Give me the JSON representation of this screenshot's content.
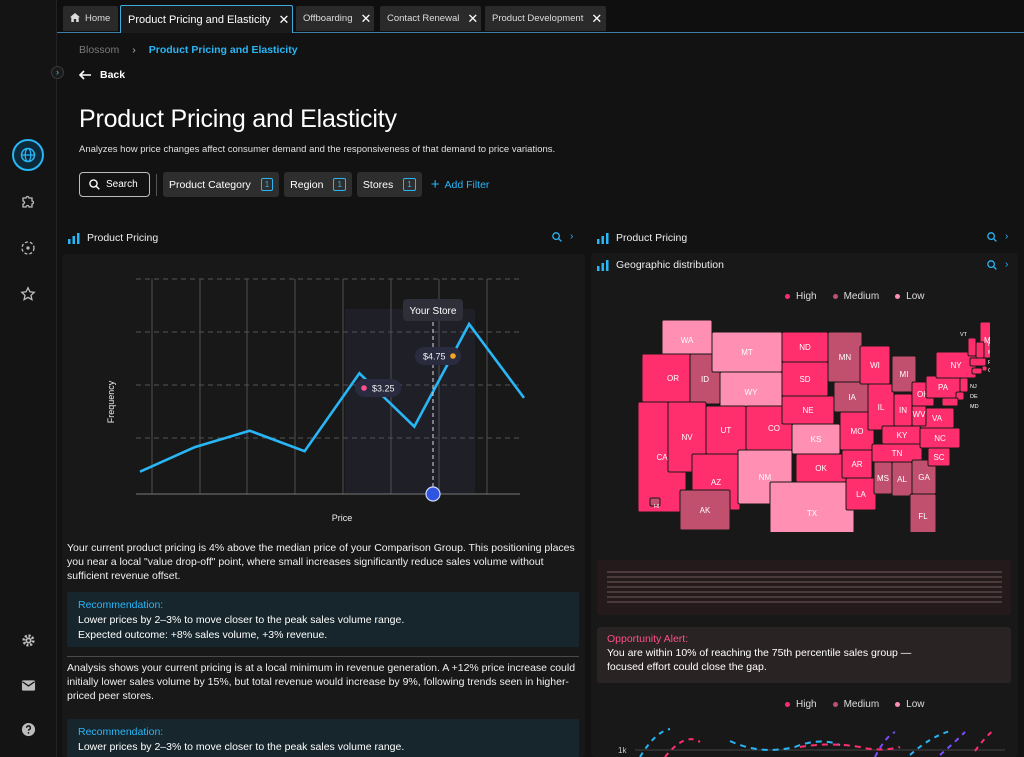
{
  "tabs": [
    {
      "label": "Home"
    },
    {
      "label": "Product Pricing and Elasticity"
    },
    {
      "label": "Offboarding"
    },
    {
      "label": "Contact Renewal"
    },
    {
      "label": "Product Development"
    }
  ],
  "breadcrumb": {
    "root": "Blossom",
    "current": "Product Pricing and Elasticity"
  },
  "header": {
    "back_label": "Back",
    "title": "Product Pricing and Elasticity",
    "subtitle": "Analyzes how price changes affect consumer demand and the responsiveness of that demand to price variations."
  },
  "filters": {
    "search_label": "Search",
    "chips": [
      {
        "label": "Product Category",
        "count": "1"
      },
      {
        "label": "Region",
        "count": "1"
      },
      {
        "label": "Stores",
        "count": "1"
      }
    ],
    "add_label": "Add Filter"
  },
  "left_panel": {
    "title": "Product Pricing",
    "paragraph1": "Your current product pricing is 4% above the median price of your Comparison Group. This positioning places you near a local \"value drop-off\" point, where small increases significantly reduce sales volume without sufficient revenue offset.",
    "reco1": {
      "title": "Recommendation:",
      "line1": "Lower prices by 2–3% to move closer to the peak sales volume range.",
      "line2": "Expected outcome: +8% sales volume, +3% revenue."
    },
    "paragraph2": "Analysis shows your current pricing is at a local minimum in revenue generation. A +12% price increase could initially lower sales volume by 15%, but total revenue would increase by 9%, following trends seen in higher-priced peer stores.",
    "reco2": {
      "title": "Recommendation:",
      "line1": "Lower prices by 2–3% to move closer to the peak sales volume range."
    }
  },
  "chart_data": {
    "type": "line",
    "xlabel": "Price",
    "ylabel": "Frequency",
    "grid": true,
    "series_color": "#29b6f6",
    "x": [
      1,
      2,
      3,
      4,
      5,
      6,
      7,
      8
    ],
    "y": [
      0.3,
      0.9,
      1.3,
      0.8,
      2.7,
      1.4,
      3.9,
      2.1
    ],
    "annotations": [
      {
        "label": "$3.25",
        "dot_color": "#ff4f8b"
      },
      {
        "label": "$4.75",
        "dot_color": "#f5a623"
      },
      {
        "label": "Your Store"
      }
    ]
  },
  "right_panel": {
    "title": "Product Pricing",
    "sub_title": "Geographic distribution",
    "legend": [
      {
        "label": "High",
        "color": "#ff2f6d"
      },
      {
        "label": "Medium",
        "color": "#c0506e"
      },
      {
        "label": "Low",
        "color": "#ff8fb3"
      }
    ],
    "states": [
      "WA",
      "OR",
      "CA",
      "ID",
      "NV",
      "MT",
      "WY",
      "UT",
      "AZ",
      "CO",
      "NM",
      "ND",
      "SD",
      "NE",
      "KS",
      "OK",
      "TX",
      "MN",
      "IA",
      "MO",
      "AR",
      "LA",
      "WI",
      "IL",
      "MI",
      "IN",
      "KY",
      "TN",
      "MS",
      "AL",
      "GA",
      "FL",
      "SC",
      "NC",
      "VA",
      "WV",
      "OH",
      "PA",
      "NY",
      "ME",
      "VT",
      "NH",
      "MA",
      "RI",
      "CT",
      "NJ",
      "DE",
      "MD",
      "AK",
      "HI"
    ],
    "alert": {
      "title": "Opportunity Alert:",
      "text": "You are within 10% of reaching the 75th percentile sales group — focused effort could close the gap."
    },
    "legend2": [
      {
        "label": "High",
        "color": "#ff2f6d"
      },
      {
        "label": "Medium",
        "color": "#c0506e"
      },
      {
        "label": "Low",
        "color": "#ff8fb3"
      }
    ],
    "mini_axis_label": "1k"
  }
}
